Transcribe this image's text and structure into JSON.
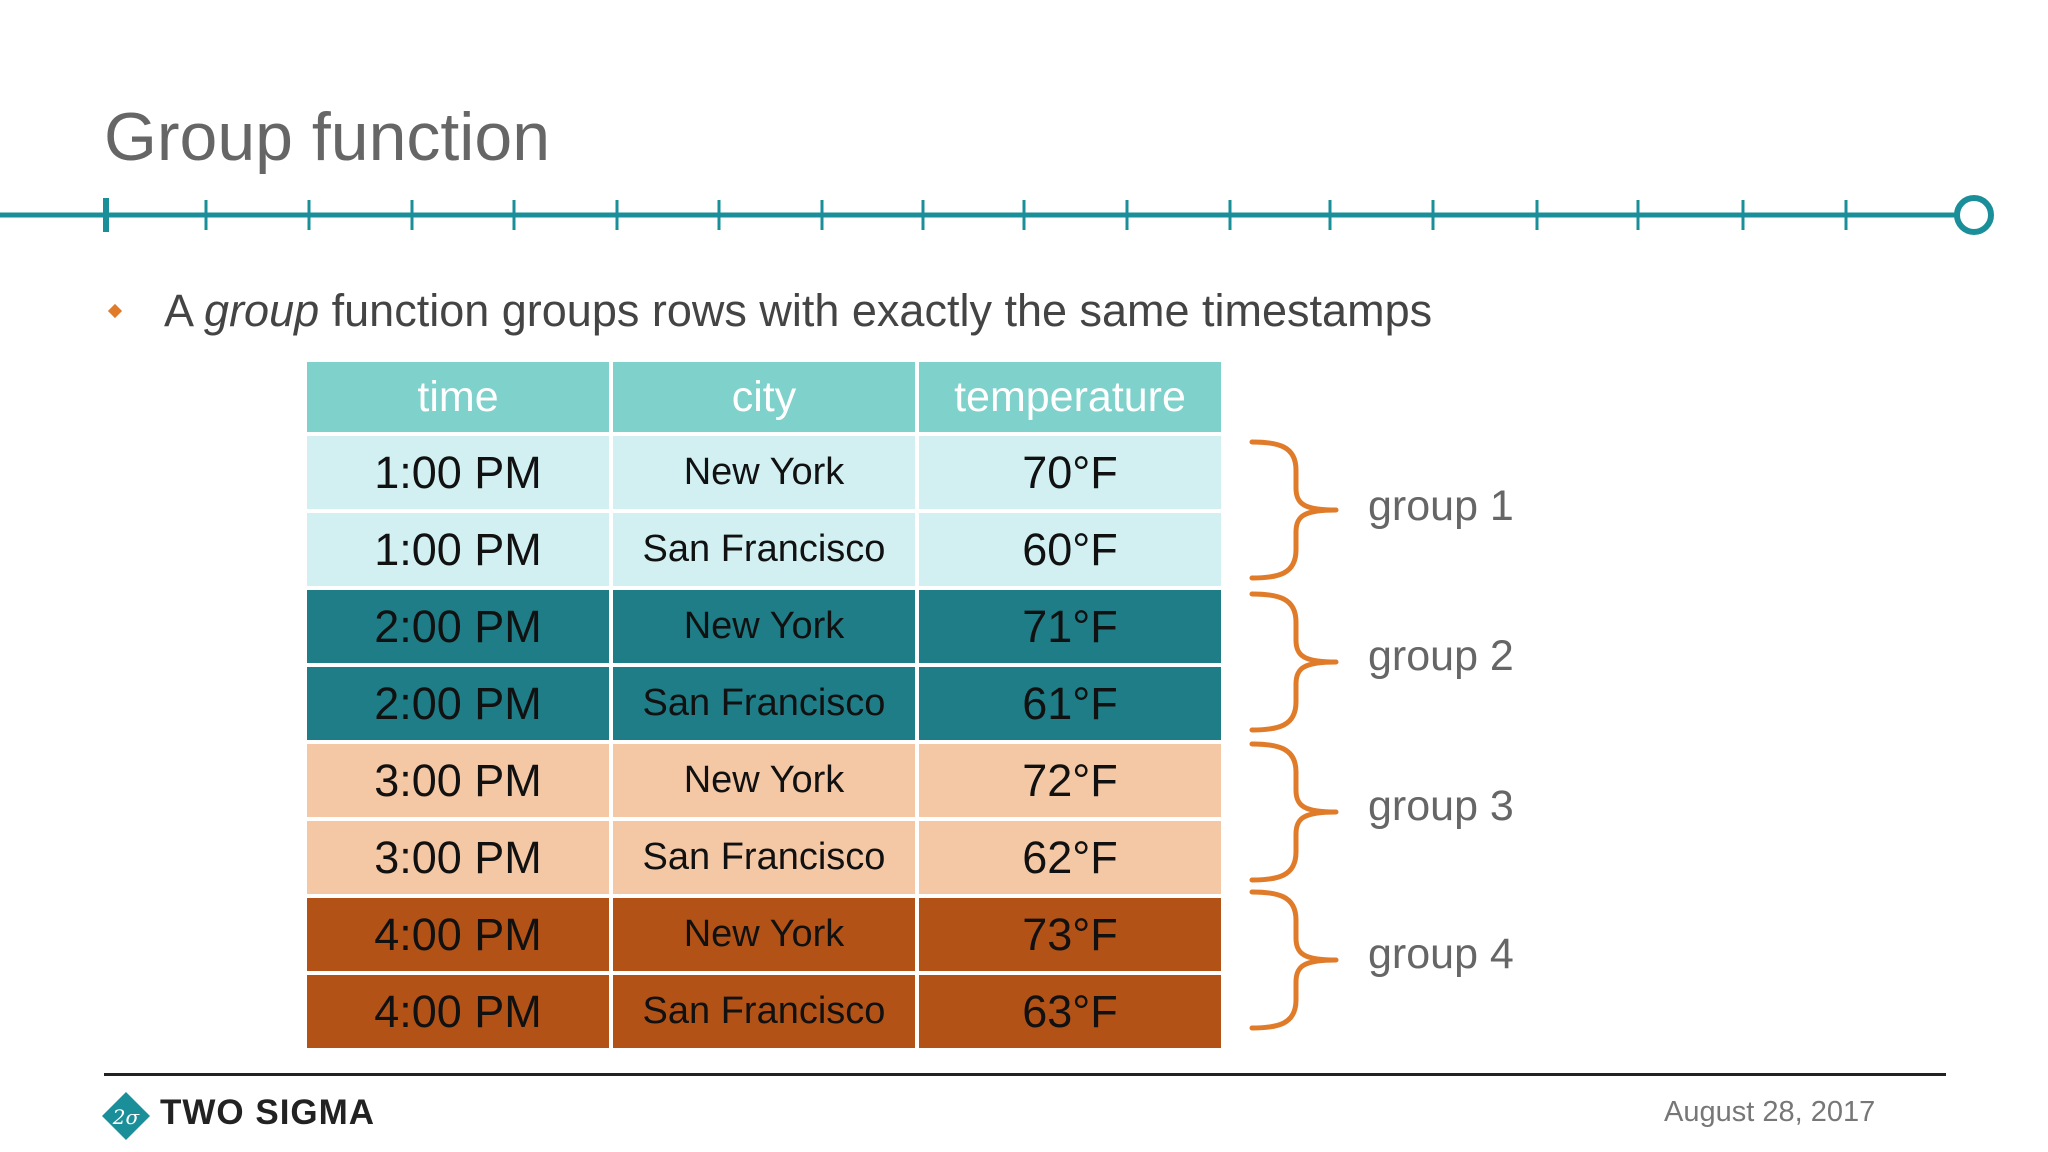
{
  "slide": {
    "title": "Group function",
    "bullet": {
      "prefix": "A ",
      "emphasis": "group",
      "suffix": " function groups rows with exactly the same timestamps"
    }
  },
  "table": {
    "headers": [
      "time",
      "city",
      "temperature"
    ],
    "rows": [
      {
        "time": "1:00 PM",
        "city": "New York",
        "temperature": "70°F"
      },
      {
        "time": "1:00 PM",
        "city": "San Francisco",
        "temperature": "60°F"
      },
      {
        "time": "2:00 PM",
        "city": "New York",
        "temperature": "71°F"
      },
      {
        "time": "2:00 PM",
        "city": "San Francisco",
        "temperature": "61°F"
      },
      {
        "time": "3:00 PM",
        "city": "New York",
        "temperature": "72°F"
      },
      {
        "time": "3:00 PM",
        "city": "San Francisco",
        "temperature": "62°F"
      },
      {
        "time": "4:00 PM",
        "city": "New York",
        "temperature": "73°F"
      },
      {
        "time": "4:00 PM",
        "city": "San Francisco",
        "temperature": "63°F"
      }
    ]
  },
  "groups": [
    "group 1",
    "group 2",
    "group 3",
    "group 4"
  ],
  "footer": {
    "logo_text": "TWO SIGMA",
    "logo_symbol": "2σ",
    "date": "August 28, 2017"
  },
  "colors": {
    "accent_teal": "#1a8f99",
    "header_teal": "#7fd1cb",
    "group1": "#d2f0f2",
    "group2": "#1e7d87",
    "group3": "#f4c7a5",
    "group4": "#b25217",
    "brace_orange": "#e07b2a"
  }
}
